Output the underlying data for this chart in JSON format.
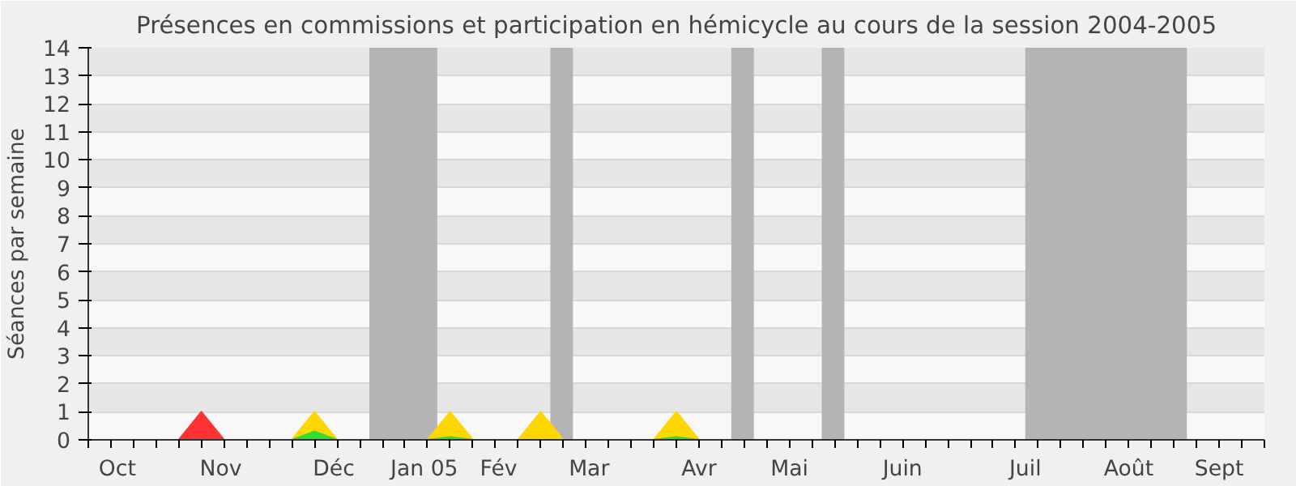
{
  "chart_data": {
    "type": "area",
    "title": "Présences en commissions et participation en hémicycle au cours de la session 2004-2005",
    "ylabel": "Séances par semaine",
    "x": [
      "2004-09-27",
      "2004-10-04",
      "2004-10-11",
      "2004-10-18",
      "2004-10-25",
      "2004-11-01",
      "2004-11-08",
      "2004-11-15",
      "2004-11-22",
      "2004-11-29",
      "2004-12-06",
      "2004-12-13",
      "2004-12-20",
      "2004-12-27",
      "2005-01-03",
      "2005-01-10",
      "2005-01-17",
      "2005-01-24",
      "2005-01-31",
      "2005-02-07",
      "2005-02-14",
      "2005-02-21",
      "2005-02-28",
      "2005-03-07",
      "2005-03-14",
      "2005-03-21",
      "2005-03-28",
      "2005-04-04",
      "2005-04-11",
      "2005-04-18",
      "2005-04-25",
      "2005-05-02",
      "2005-05-09",
      "2005-05-16",
      "2005-05-23",
      "2005-05-30",
      "2005-06-06",
      "2005-06-13",
      "2005-06-20",
      "2005-06-27",
      "2005-07-04",
      "2005-07-11",
      "2005-07-18",
      "2005-07-25",
      "2005-08-01",
      "2005-08-08",
      "2005-08-15",
      "2005-08-22",
      "2005-08-29",
      "2005-09-05",
      "2005-09-12",
      "2005-09-19",
      "2005-09-26"
    ],
    "series": [
      {
        "color": "#ff3333",
        "values": [
          0,
          0,
          0,
          0,
          0,
          1,
          0,
          0,
          0,
          0,
          0,
          0,
          0,
          0,
          0,
          0,
          0,
          0,
          0,
          0,
          0,
          0,
          0,
          0,
          0,
          0,
          0,
          0,
          0,
          0,
          0,
          0,
          0,
          0,
          0,
          0,
          0,
          0,
          0,
          0,
          0,
          0,
          0,
          0,
          0,
          0,
          0,
          0,
          0,
          0,
          0,
          0,
          0
        ]
      },
      {
        "color": "#ffd700",
        "values": [
          null,
          null,
          null,
          null,
          null,
          null,
          null,
          null,
          null,
          0,
          1,
          0,
          null,
          null,
          null,
          0,
          1,
          0,
          null,
          0,
          1,
          0,
          null,
          null,
          null,
          0,
          1,
          0,
          null,
          null,
          null,
          null,
          null,
          null,
          null,
          null,
          null,
          null,
          null,
          null,
          null,
          null,
          null,
          null,
          null,
          null,
          null,
          null,
          null,
          null,
          null,
          null,
          null
        ]
      },
      {
        "color": "#33dd33",
        "values": [
          null,
          null,
          null,
          null,
          null,
          null,
          null,
          null,
          null,
          0,
          0.3,
          0,
          null,
          null,
          null,
          0,
          0.1,
          0,
          null,
          null,
          null,
          null,
          null,
          null,
          null,
          0,
          0.1,
          0,
          null,
          null,
          null,
          null,
          null,
          null,
          null,
          null,
          null,
          null,
          null,
          null,
          null,
          null,
          null,
          null,
          null,
          null,
          null,
          null,
          null,
          null,
          null,
          null,
          null
        ]
      }
    ],
    "xlim": [
      "2004-09-27",
      "2005-09-26"
    ],
    "xticks": [
      {
        "value": "2004-10-06",
        "label": "Oct"
      },
      {
        "value": "2004-11-07",
        "label": "Nov"
      },
      {
        "value": "2004-12-12",
        "label": "Déc"
      },
      {
        "value": "2005-01-09",
        "label": "Jan 05"
      },
      {
        "value": "2005-02-01",
        "label": "Fév"
      },
      {
        "value": "2005-03-01",
        "label": "Mar"
      },
      {
        "value": "2005-04-04",
        "label": "Avr"
      },
      {
        "value": "2005-05-02",
        "label": "Mai"
      },
      {
        "value": "2005-06-06",
        "label": "Juin"
      },
      {
        "value": "2005-07-14",
        "label": "Juil"
      },
      {
        "value": "2005-08-15",
        "label": "Août"
      },
      {
        "value": "2005-09-12",
        "label": "Sept"
      }
    ],
    "ylim": [
      0,
      14
    ],
    "yticks": [
      0,
      1,
      2,
      3,
      4,
      5,
      6,
      7,
      8,
      9,
      10,
      11,
      12,
      13,
      14
    ],
    "bands": [
      {
        "axis": "x",
        "from": "2004-12-23",
        "to": "2005-01-13",
        "color": "#b4b4b4"
      },
      {
        "axis": "x",
        "from": "2005-02-17",
        "to": "2005-02-24",
        "color": "#b4b4b4"
      },
      {
        "axis": "x",
        "from": "2005-04-14",
        "to": "2005-04-21",
        "color": "#b4b4b4"
      },
      {
        "axis": "x",
        "from": "2005-05-12",
        "to": "2005-05-19",
        "color": "#b4b4b4"
      },
      {
        "axis": "x",
        "from": "2005-07-14",
        "to": "2005-09-02",
        "color": "#b4b4b4"
      }
    ],
    "grid": "y"
  }
}
